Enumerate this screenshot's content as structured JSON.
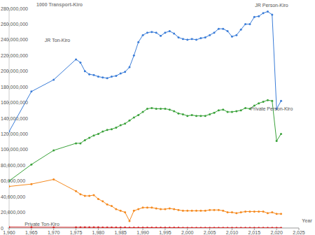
{
  "chart_data": {
    "type": "line",
    "title": "1000 Transport-Kiro",
    "x_label": "Year",
    "x": [
      1960,
      1965,
      1970,
      1975,
      1976,
      1977,
      1978,
      1979,
      1980,
      1981,
      1982,
      1983,
      1984,
      1985,
      1986,
      1987,
      1988,
      1989,
      1990,
      1991,
      1992,
      1993,
      1994,
      1995,
      1996,
      1997,
      1998,
      1999,
      2000,
      2001,
      2002,
      2003,
      2004,
      2005,
      2006,
      2007,
      2008,
      2009,
      2010,
      2011,
      2012,
      2013,
      2014,
      2015,
      2016,
      2017,
      2018,
      2019,
      2020,
      2021
    ],
    "series": [
      {
        "name": "JR Person-Kiro",
        "color": "#3b7dd8",
        "marker": "circle",
        "values": [
          123000000,
          174000000,
          189000000,
          215000000,
          211000000,
          200000000,
          196000000,
          195000000,
          193000000,
          192000000,
          191000000,
          193000000,
          194000000,
          197000000,
          199000000,
          205000000,
          220000000,
          237000000,
          246000000,
          249000000,
          250000000,
          249000000,
          245000000,
          249000000,
          251000000,
          248000000,
          243000000,
          241000000,
          240000000,
          241000000,
          240000000,
          242000000,
          243000000,
          246000000,
          249000000,
          254000000,
          254000000,
          251000000,
          244000000,
          246000000,
          253000000,
          260000000,
          260000000,
          269000000,
          270000000,
          274000000,
          276000000,
          272000000,
          152000000,
          162000000
        ]
      },
      {
        "name": "Private Person-Kiro",
        "color": "#3aa23a",
        "marker": "circle",
        "values": [
          60000000,
          81000000,
          99000000,
          108000000,
          108000000,
          112000000,
          115000000,
          118000000,
          120000000,
          123000000,
          125000000,
          126000000,
          128000000,
          131000000,
          133000000,
          137000000,
          141000000,
          144000000,
          148000000,
          152000000,
          153000000,
          152000000,
          152000000,
          152000000,
          151000000,
          149000000,
          146000000,
          145000000,
          143000000,
          144000000,
          143000000,
          143000000,
          143000000,
          145000000,
          147000000,
          150000000,
          151000000,
          148000000,
          148000000,
          149000000,
          150000000,
          153000000,
          152000000,
          156000000,
          159000000,
          161000000,
          163000000,
          162000000,
          111000000,
          120000000
        ]
      },
      {
        "name": "JR Ton-Kiro",
        "color": "#f58a1f",
        "marker": "circle",
        "values": [
          53000000,
          56000000,
          62000000,
          47000000,
          43000000,
          41000000,
          41000000,
          42000000,
          37000000,
          34000000,
          30000000,
          28000000,
          24000000,
          22000000,
          20000000,
          9000000,
          22000000,
          24000000,
          26000000,
          26000000,
          26000000,
          25000000,
          24000000,
          24000000,
          25000000,
          24000000,
          23000000,
          22000000,
          22000000,
          22000000,
          22000000,
          22000000,
          22000000,
          23000000,
          23000000,
          23000000,
          22000000,
          20000000,
          20000000,
          19000000,
          20000000,
          21000000,
          21000000,
          21000000,
          21000000,
          21000000,
          19000000,
          20000000,
          18000000,
          18000000
        ]
      },
      {
        "name": "Private Ton-Kiro",
        "color": "#d62728",
        "marker": "circle",
        "values": [
          1200000,
          1100000,
          1000000,
          900000,
          900000,
          900000,
          800000,
          800000,
          800000,
          700000,
          700000,
          700000,
          600000,
          600000,
          600000,
          500000,
          500000,
          500000,
          500000,
          500000,
          500000,
          400000,
          400000,
          400000,
          400000,
          400000,
          400000,
          300000,
          300000,
          300000,
          300000,
          300000,
          300000,
          300000,
          300000,
          300000,
          300000,
          200000,
          200000,
          200000,
          200000,
          200000,
          200000,
          200000,
          200000,
          200000,
          200000,
          200000,
          200000,
          200000
        ]
      }
    ],
    "xlim": [
      1960,
      2025
    ],
    "xticks": [
      {
        "value": 1960,
        "label": "1,960"
      },
      {
        "value": 1965,
        "label": "1,965"
      },
      {
        "value": 1970,
        "label": "1,970"
      },
      {
        "value": 1975,
        "label": "1,975"
      },
      {
        "value": 1980,
        "label": "1,980"
      },
      {
        "value": 1985,
        "label": "1,985"
      },
      {
        "value": 1990,
        "label": "1,990"
      },
      {
        "value": 1995,
        "label": "1,995"
      },
      {
        "value": 2000,
        "label": "2,000"
      },
      {
        "value": 2005,
        "label": "2,005"
      },
      {
        "value": 2010,
        "label": "2,010"
      },
      {
        "value": 2015,
        "label": "2,015"
      },
      {
        "value": 2020,
        "label": "2,020"
      },
      {
        "value": 2025,
        "label": "2,025"
      }
    ],
    "ylim": [
      0,
      280000000
    ],
    "yticks": [
      0,
      {
        "value": 20000000,
        "label": "20,000,000"
      },
      {
        "value": 40000000,
        "label": "40,000,000"
      },
      {
        "value": 60000000,
        "label": "60,000,000"
      },
      {
        "value": 80000000,
        "label": "80,000,000"
      },
      {
        "value": 100000000,
        "label": "100,000,000"
      },
      {
        "value": 120000000,
        "label": "120,000,000"
      },
      {
        "value": 140000000,
        "label": "140,000,000"
      },
      {
        "value": 160000000,
        "label": "160,000,000"
      },
      {
        "value": 180000000,
        "label": "180,000,000"
      },
      {
        "value": 200000000,
        "label": "200,000,000"
      },
      {
        "value": 220000000,
        "label": "220,000,000"
      },
      {
        "value": 240000000,
        "label": "240,000,000"
      },
      {
        "value": 260000000,
        "label": "260,000,000"
      },
      {
        "value": 280000000,
        "label": "280,000,000"
      }
    ],
    "grid": false
  }
}
